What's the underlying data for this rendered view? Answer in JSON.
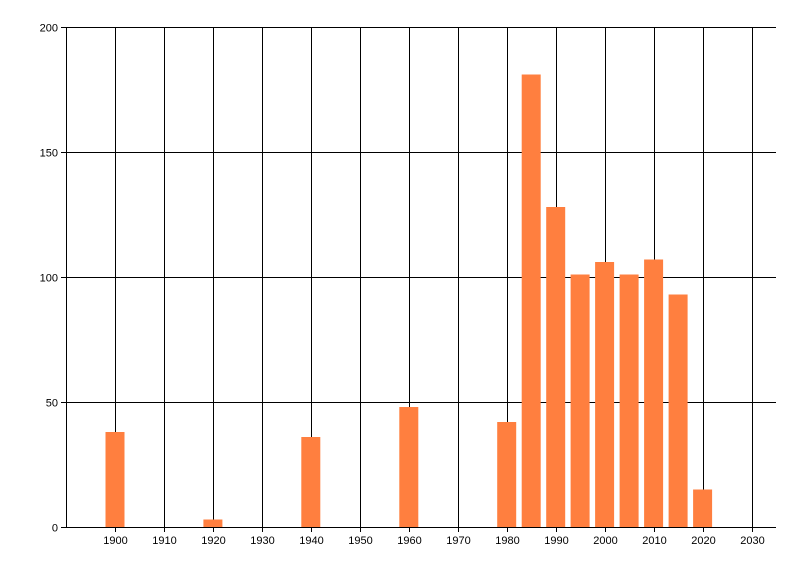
{
  "chart_data": {
    "type": "bar",
    "title": "",
    "xlabel": "",
    "ylabel": "",
    "x_ticks": [
      "1900",
      "1910",
      "1920",
      "1930",
      "1940",
      "1950",
      "1960",
      "1970",
      "1980",
      "1990",
      "2000",
      "2010",
      "2020",
      "2030"
    ],
    "y_ticks": [
      "0",
      "50",
      "100",
      "150",
      "200"
    ],
    "xlim": [
      1890,
      2035
    ],
    "ylim": [
      0,
      200
    ],
    "grid": true,
    "bar_color": "#FF7F3F",
    "bars": [
      {
        "x": 1900,
        "value": 38
      },
      {
        "x": 1920,
        "value": 3
      },
      {
        "x": 1940,
        "value": 36
      },
      {
        "x": 1960,
        "value": 48
      },
      {
        "x": 1980,
        "value": 42
      },
      {
        "x": 1985,
        "value": 181
      },
      {
        "x": 1990,
        "value": 128
      },
      {
        "x": 1995,
        "value": 101
      },
      {
        "x": 2000,
        "value": 106
      },
      {
        "x": 2005,
        "value": 101
      },
      {
        "x": 2010,
        "value": 107
      },
      {
        "x": 2015,
        "value": 93
      },
      {
        "x": 2020,
        "value": 15
      }
    ]
  }
}
